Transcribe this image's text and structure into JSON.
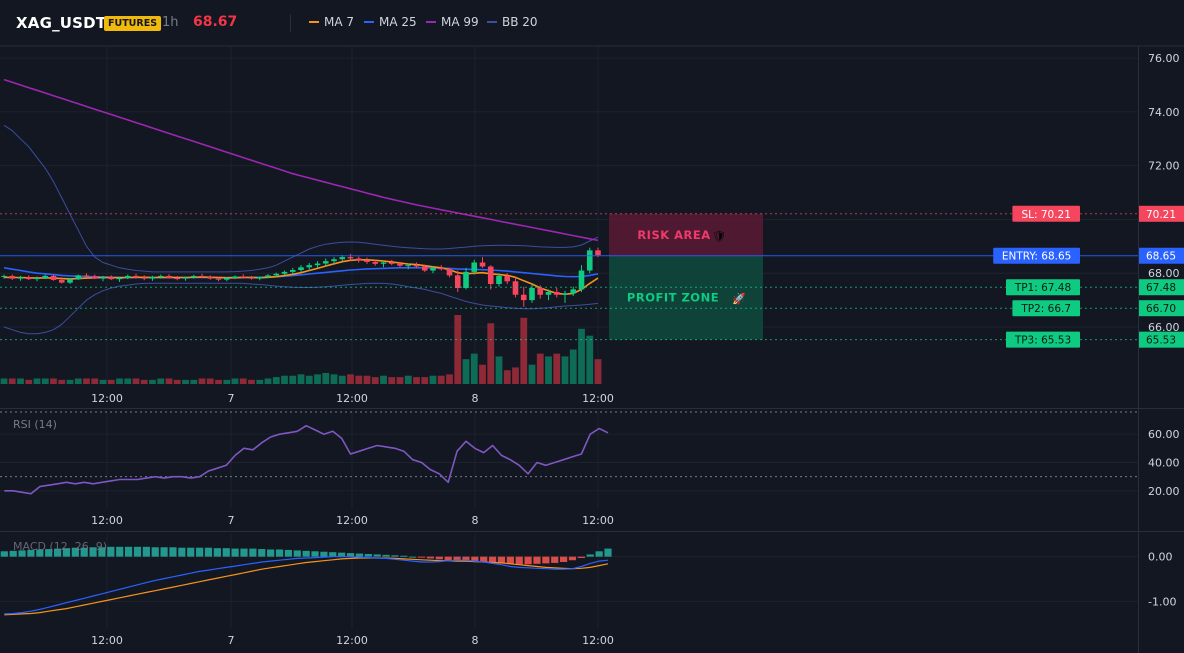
{
  "header": {
    "symbol": "XAG_USDT",
    "badge": "FUTURES",
    "timeframe": "1h",
    "last_price": "68.67",
    "legend": [
      {
        "name": "MA 7",
        "color": "#f7931a"
      },
      {
        "name": "MA 25",
        "color": "#2962ff"
      },
      {
        "name": "MA 99",
        "color": "#9c27b0"
      },
      {
        "name": "BB 20",
        "color": "#3b4ea0"
      }
    ]
  },
  "colors": {
    "up": "#0ecb81",
    "down": "#f6465d",
    "background": "#131722",
    "grid": "#1f2330"
  },
  "chart_data": [
    {
      "type": "candlestick",
      "name": "price",
      "ylim": [
        64.3,
        76.3
      ],
      "y_ticks": [
        "76.00",
        "74.00",
        "72.00",
        "68.00",
        "66.00"
      ],
      "x_tick_labels": [
        "12:00",
        "7",
        "12:00",
        "8",
        "12:00"
      ],
      "ohlc_note": "hourly candles, 0 = leftmost bar",
      "candles": [
        [
          67.88,
          67.95,
          67.8,
          67.9
        ],
        [
          67.9,
          67.95,
          67.75,
          67.8
        ],
        [
          67.8,
          67.9,
          67.72,
          67.85
        ],
        [
          67.85,
          67.92,
          67.75,
          67.78
        ],
        [
          67.78,
          67.88,
          67.7,
          67.82
        ],
        [
          67.82,
          67.95,
          67.78,
          67.9
        ],
        [
          67.9,
          67.95,
          67.72,
          67.75
        ],
        [
          67.75,
          67.85,
          67.62,
          67.65
        ],
        [
          67.65,
          67.82,
          67.6,
          67.78
        ],
        [
          67.78,
          67.95,
          67.75,
          67.92
        ],
        [
          67.92,
          68.0,
          67.85,
          67.88
        ],
        [
          67.88,
          67.95,
          67.78,
          67.8
        ],
        [
          67.8,
          67.9,
          67.7,
          67.85
        ],
        [
          67.85,
          67.92,
          67.75,
          67.78
        ],
        [
          67.78,
          67.88,
          67.68,
          67.82
        ],
        [
          67.82,
          67.95,
          67.78,
          67.9
        ],
        [
          67.9,
          67.98,
          67.8,
          67.84
        ],
        [
          67.84,
          67.92,
          67.74,
          67.8
        ],
        [
          67.8,
          67.9,
          67.72,
          67.86
        ],
        [
          67.86,
          67.95,
          67.8,
          67.9
        ],
        [
          67.9,
          67.96,
          67.8,
          67.82
        ],
        [
          67.82,
          67.9,
          67.74,
          67.8
        ],
        [
          67.8,
          67.88,
          67.72,
          67.84
        ],
        [
          67.84,
          67.94,
          67.8,
          67.9
        ],
        [
          67.9,
          67.98,
          67.82,
          67.86
        ],
        [
          67.86,
          67.92,
          67.76,
          67.8
        ],
        [
          67.8,
          67.88,
          67.7,
          67.76
        ],
        [
          67.76,
          67.86,
          67.7,
          67.82
        ],
        [
          67.82,
          67.92,
          67.78,
          67.88
        ],
        [
          67.88,
          67.96,
          67.8,
          67.84
        ],
        [
          67.84,
          67.9,
          67.76,
          67.8
        ],
        [
          67.8,
          67.88,
          67.74,
          67.86
        ],
        [
          67.86,
          67.96,
          67.82,
          67.92
        ],
        [
          67.92,
          68.02,
          67.86,
          67.98
        ],
        [
          67.98,
          68.1,
          67.92,
          68.05
        ],
        [
          68.05,
          68.2,
          67.98,
          68.12
        ],
        [
          68.12,
          68.3,
          68.05,
          68.22
        ],
        [
          68.22,
          68.38,
          68.1,
          68.3
        ],
        [
          68.3,
          68.45,
          68.2,
          68.36
        ],
        [
          68.36,
          68.55,
          68.28,
          68.45
        ],
        [
          68.45,
          68.6,
          68.35,
          68.52
        ],
        [
          68.52,
          68.68,
          68.45,
          68.6
        ],
        [
          68.6,
          68.72,
          68.48,
          68.55
        ],
        [
          68.55,
          68.62,
          68.4,
          68.48
        ],
        [
          68.48,
          68.58,
          68.35,
          68.42
        ],
        [
          68.42,
          68.5,
          68.28,
          68.35
        ],
        [
          68.35,
          68.45,
          68.22,
          68.4
        ],
        [
          68.4,
          68.5,
          68.3,
          68.35
        ],
        [
          68.35,
          68.42,
          68.22,
          68.28
        ],
        [
          68.28,
          68.36,
          68.15,
          68.3
        ],
        [
          68.3,
          68.4,
          68.2,
          68.25
        ],
        [
          68.25,
          68.32,
          68.05,
          68.1
        ],
        [
          68.1,
          68.25,
          68.0,
          68.2
        ],
        [
          68.2,
          68.3,
          68.1,
          68.15
        ],
        [
          68.15,
          68.2,
          67.85,
          67.92
        ],
        [
          67.92,
          68.1,
          67.3,
          67.45
        ],
        [
          67.45,
          68.2,
          67.4,
          68.05
        ],
        [
          68.05,
          68.5,
          67.95,
          68.4
        ],
        [
          68.4,
          68.6,
          68.2,
          68.25
        ],
        [
          68.25,
          68.3,
          67.4,
          67.6
        ],
        [
          67.6,
          68.0,
          67.5,
          67.9
        ],
        [
          67.9,
          68.0,
          67.6,
          67.7
        ],
        [
          67.7,
          67.85,
          67.1,
          67.2
        ],
        [
          67.2,
          67.5,
          66.75,
          67.0
        ],
        [
          67.0,
          67.6,
          66.9,
          67.45
        ],
        [
          67.45,
          67.55,
          67.05,
          67.2
        ],
        [
          67.2,
          67.4,
          67.0,
          67.3
        ],
        [
          67.3,
          67.45,
          67.1,
          67.2
        ],
        [
          67.2,
          67.35,
          66.9,
          67.25
        ],
        [
          67.25,
          67.5,
          67.15,
          67.4
        ],
        [
          67.4,
          68.3,
          67.3,
          68.1
        ],
        [
          68.1,
          68.95,
          68.0,
          68.85
        ],
        [
          68.85,
          68.95,
          68.6,
          68.67
        ]
      ],
      "ma7": [
        67.85,
        67.84,
        67.84,
        67.83,
        67.82,
        67.83,
        67.82,
        67.8,
        67.79,
        67.8,
        67.82,
        67.83,
        67.84,
        67.84,
        67.83,
        67.84,
        67.85,
        67.85,
        67.84,
        67.84,
        67.85,
        67.84,
        67.84,
        67.85,
        67.86,
        67.85,
        67.84,
        67.83,
        67.83,
        67.84,
        67.84,
        67.83,
        67.85,
        67.87,
        67.91,
        67.96,
        68.02,
        68.1,
        68.18,
        68.27,
        68.35,
        68.43,
        68.48,
        68.5,
        68.5,
        68.48,
        68.45,
        68.42,
        68.38,
        68.34,
        68.32,
        68.28,
        68.24,
        68.2,
        68.13,
        68.02,
        67.98,
        68.0,
        68.02,
        67.98,
        67.95,
        67.92,
        67.85,
        67.72,
        67.6,
        67.45,
        67.35,
        67.25,
        67.22,
        67.25,
        67.4,
        67.62,
        67.82
      ],
      "ma25": [
        68.2,
        68.15,
        68.1,
        68.05,
        68.0,
        67.98,
        67.95,
        67.92,
        67.9,
        67.89,
        67.88,
        67.87,
        67.86,
        67.85,
        67.85,
        67.84,
        67.84,
        67.84,
        67.84,
        67.84,
        67.84,
        67.84,
        67.84,
        67.84,
        67.84,
        67.84,
        67.84,
        67.84,
        67.85,
        67.85,
        67.85,
        67.85,
        67.86,
        67.87,
        67.89,
        67.91,
        67.94,
        67.97,
        68.0,
        68.03,
        68.06,
        68.09,
        68.12,
        68.14,
        68.16,
        68.17,
        68.18,
        68.19,
        68.2,
        68.2,
        68.2,
        68.2,
        68.2,
        68.19,
        68.18,
        68.16,
        68.15,
        68.14,
        68.13,
        68.12,
        68.1,
        68.08,
        68.05,
        68.02,
        67.99,
        67.96,
        67.93,
        67.9,
        67.88,
        67.87,
        67.88,
        67.92,
        67.98
      ],
      "ma99": [
        75.2,
        75.1,
        75.0,
        74.9,
        74.8,
        74.7,
        74.6,
        74.5,
        74.4,
        74.3,
        74.2,
        74.1,
        74.0,
        73.9,
        73.8,
        73.7,
        73.6,
        73.5,
        73.4,
        73.3,
        73.2,
        73.1,
        73.0,
        72.9,
        72.8,
        72.7,
        72.6,
        72.5,
        72.4,
        72.3,
        72.2,
        72.1,
        72.0,
        71.9,
        71.8,
        71.7,
        71.62,
        71.54,
        71.46,
        71.38,
        71.3,
        71.22,
        71.14,
        71.06,
        70.98,
        70.9,
        70.82,
        70.75,
        70.68,
        70.61,
        70.54,
        70.48,
        70.42,
        70.36,
        70.3,
        70.24,
        70.18,
        70.12,
        70.06,
        70.0,
        69.94,
        69.88,
        69.82,
        69.76,
        69.7,
        69.64,
        69.58,
        69.52,
        69.46,
        69.4,
        69.34,
        69.28,
        69.22
      ],
      "bb_upper": [
        73.5,
        73.3,
        73.0,
        72.7,
        72.3,
        71.9,
        71.4,
        70.8,
        70.2,
        69.6,
        69.0,
        68.6,
        68.4,
        68.3,
        68.2,
        68.15,
        68.1,
        68.08,
        68.05,
        68.05,
        68.05,
        68.05,
        68.05,
        68.05,
        68.05,
        68.05,
        68.05,
        68.05,
        68.06,
        68.08,
        68.1,
        68.15,
        68.2,
        68.3,
        68.45,
        68.6,
        68.75,
        68.9,
        69.0,
        69.08,
        69.12,
        69.15,
        69.16,
        69.15,
        69.12,
        69.08,
        69.04,
        69.0,
        68.97,
        68.95,
        68.93,
        68.91,
        68.9,
        68.9,
        68.92,
        68.95,
        68.97,
        69.0,
        69.02,
        69.03,
        69.04,
        69.04,
        69.03,
        69.02,
        69.0,
        68.98,
        68.97,
        68.96,
        68.96,
        68.98,
        69.05,
        69.2,
        69.35
      ],
      "bb_lower": [
        66.0,
        65.9,
        65.8,
        65.75,
        65.75,
        65.8,
        65.9,
        66.1,
        66.4,
        66.7,
        67.0,
        67.2,
        67.35,
        67.45,
        67.52,
        67.56,
        67.6,
        67.62,
        67.63,
        67.63,
        67.63,
        67.63,
        67.63,
        67.63,
        67.63,
        67.63,
        67.63,
        67.63,
        67.63,
        67.62,
        67.6,
        67.58,
        67.55,
        67.52,
        67.5,
        67.48,
        67.47,
        67.47,
        67.48,
        67.5,
        67.52,
        67.55,
        67.58,
        67.6,
        67.62,
        67.63,
        67.62,
        67.6,
        67.56,
        67.5,
        67.45,
        67.4,
        67.32,
        67.25,
        67.15,
        67.05,
        66.95,
        66.88,
        66.82,
        66.78,
        66.75,
        66.72,
        66.7,
        66.68,
        66.68,
        66.7,
        66.72,
        66.75,
        66.78,
        66.8,
        66.82,
        66.85,
        66.88
      ],
      "volume": [
        4,
        4,
        4,
        3,
        4,
        4,
        4,
        3,
        3,
        4,
        4,
        4,
        3,
        3,
        4,
        4,
        4,
        3,
        3,
        4,
        4,
        3,
        3,
        3,
        4,
        4,
        3,
        3,
        4,
        4,
        3,
        3,
        4,
        5,
        6,
        6,
        7,
        6,
        7,
        8,
        7,
        6,
        7,
        6,
        6,
        5,
        6,
        5,
        5,
        6,
        5,
        5,
        6,
        6,
        7,
        50,
        18,
        22,
        14,
        44,
        20,
        10,
        12,
        48,
        14,
        22,
        20,
        22,
        20,
        25,
        40,
        35,
        18
      ],
      "annotations": [
        {
          "label": "SL: 70.21",
          "value": "70.21",
          "price": 70.21,
          "color": "#f6465d"
        },
        {
          "label": "ENTRY: 68.65",
          "value": "68.65",
          "price": 68.65,
          "color": "#2962ff"
        },
        {
          "label": "TP1: 67.48",
          "value": "67.48",
          "price": 67.48,
          "color": "#0ecb81"
        },
        {
          "label": "TP2: 66.7",
          "value": "66.70",
          "price": 66.7,
          "color": "#0ecb81"
        },
        {
          "label": "TP3: 65.53",
          "value": "65.53",
          "price": 65.53,
          "color": "#0ecb81"
        }
      ],
      "zones": [
        {
          "label": "RISK AREA",
          "icon": "🛡",
          "top": 70.21,
          "bottom": 68.65,
          "color": "#f23645"
        },
        {
          "label": "PROFIT ZONE",
          "icon": "🚀",
          "top": 68.65,
          "bottom": 65.53,
          "color": "#0ecb81"
        }
      ]
    },
    {
      "type": "line",
      "name": "rsi",
      "title": "RSI (14)",
      "ylim": [
        10,
        70
      ],
      "y_ticks": [
        "60.00",
        "40.00",
        "20.00"
      ],
      "levels": [
        70,
        30
      ],
      "x_tick_labels": [
        "12:00",
        "7",
        "12:00",
        "8",
        "12:00"
      ],
      "values": [
        20,
        20,
        19,
        18,
        23,
        24,
        25,
        26,
        25,
        26,
        25,
        26,
        27,
        28,
        28,
        28,
        29,
        30,
        29,
        30,
        30,
        29,
        30,
        34,
        36,
        38,
        45,
        50,
        49,
        54,
        58,
        60,
        61,
        62,
        66,
        63,
        60,
        62,
        57,
        46,
        48,
        50,
        52,
        51,
        50,
        48,
        42,
        40,
        35,
        32,
        26,
        48,
        55,
        50,
        47,
        52,
        45,
        42,
        38,
        32,
        40,
        38,
        40,
        42,
        44,
        46,
        60,
        64,
        61
      ]
    },
    {
      "type": "bar",
      "name": "macd",
      "title": "MACD (12, 26, 9)",
      "ylim": [
        -1.55,
        0.35
      ],
      "y_ticks": [
        "0.00",
        "-1.00"
      ],
      "x_tick_labels": [
        "12:00",
        "7",
        "12:00",
        "8",
        "12:00"
      ],
      "histogram": [
        0.12,
        0.13,
        0.14,
        0.15,
        0.16,
        0.17,
        0.18,
        0.19,
        0.2,
        0.2,
        0.21,
        0.21,
        0.22,
        0.22,
        0.22,
        0.22,
        0.22,
        0.21,
        0.21,
        0.21,
        0.2,
        0.2,
        0.2,
        0.2,
        0.19,
        0.19,
        0.18,
        0.18,
        0.18,
        0.17,
        0.16,
        0.16,
        0.15,
        0.14,
        0.13,
        0.12,
        0.11,
        0.1,
        0.09,
        0.08,
        0.07,
        0.06,
        0.05,
        0.04,
        0.03,
        0.02,
        0.0,
        -0.02,
        -0.04,
        -0.06,
        -0.08,
        -0.1,
        -0.11,
        -0.12,
        -0.13,
        -0.14,
        -0.15,
        -0.16,
        -0.17,
        -0.17,
        -0.16,
        -0.15,
        -0.14,
        -0.12,
        -0.08,
        -0.03,
        0.05,
        0.12,
        0.18
      ],
      "macd": [
        -1.28,
        -1.27,
        -1.25,
        -1.22,
        -1.18,
        -1.13,
        -1.08,
        -1.03,
        -0.98,
        -0.93,
        -0.88,
        -0.83,
        -0.78,
        -0.73,
        -0.68,
        -0.63,
        -0.58,
        -0.53,
        -0.49,
        -0.45,
        -0.41,
        -0.37,
        -0.33,
        -0.3,
        -0.27,
        -0.24,
        -0.21,
        -0.18,
        -0.15,
        -0.12,
        -0.1,
        -0.08,
        -0.06,
        -0.04,
        -0.03,
        -0.02,
        -0.01,
        0.0,
        0.0,
        0.0,
        -0.01,
        -0.02,
        -0.03,
        -0.04,
        -0.06,
        -0.08,
        -0.1,
        -0.12,
        -0.12,
        -0.11,
        -0.09,
        -0.08,
        -0.08,
        -0.1,
        -0.12,
        -0.15,
        -0.18,
        -0.22,
        -0.24,
        -0.25,
        -0.26,
        -0.27,
        -0.28,
        -0.28,
        -0.27,
        -0.22,
        -0.15,
        -0.1,
        -0.08
      ],
      "signal": [
        -1.3,
        -1.29,
        -1.28,
        -1.27,
        -1.25,
        -1.22,
        -1.19,
        -1.16,
        -1.12,
        -1.08,
        -1.04,
        -1.0,
        -0.96,
        -0.92,
        -0.88,
        -0.84,
        -0.8,
        -0.76,
        -0.72,
        -0.68,
        -0.64,
        -0.6,
        -0.56,
        -0.52,
        -0.48,
        -0.44,
        -0.4,
        -0.36,
        -0.32,
        -0.28,
        -0.25,
        -0.22,
        -0.19,
        -0.16,
        -0.13,
        -0.11,
        -0.09,
        -0.07,
        -0.05,
        -0.04,
        -0.03,
        -0.03,
        -0.03,
        -0.03,
        -0.04,
        -0.05,
        -0.06,
        -0.07,
        -0.08,
        -0.09,
        -0.09,
        -0.1,
        -0.1,
        -0.11,
        -0.12,
        -0.13,
        -0.14,
        -0.16,
        -0.18,
        -0.2,
        -0.22,
        -0.24,
        -0.25,
        -0.26,
        -0.27,
        -0.26,
        -0.24,
        -0.2,
        -0.16
      ]
    }
  ]
}
